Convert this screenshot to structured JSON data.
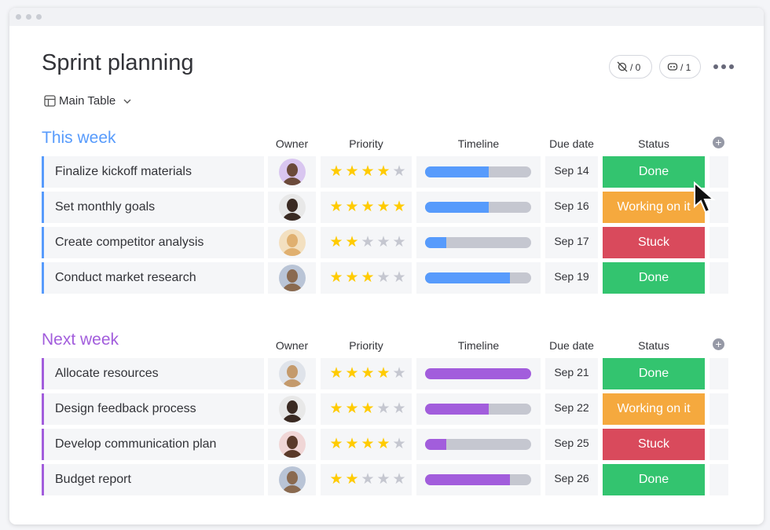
{
  "header": {
    "title": "Sprint planning",
    "view": "Main Table",
    "counters": [
      "/ 0",
      "/ 1"
    ]
  },
  "columns": [
    "Owner",
    "Priority",
    "Timeline",
    "Due date",
    "Status"
  ],
  "groups": [
    {
      "title": "This week",
      "color": "#579bfc",
      "rows": [
        {
          "task": "Finalize kickoff materials",
          "priority": 4,
          "timeline": 60,
          "due": "Sep 14",
          "status": {
            "label": "Done",
            "color": "#33c46f"
          }
        },
        {
          "task": "Set monthly goals",
          "priority": 5,
          "timeline": 60,
          "due": "Sep 16",
          "status": {
            "label": "Working on it",
            "color": "#f5a93e"
          }
        },
        {
          "task": "Create competitor analysis",
          "priority": 2,
          "timeline": 20,
          "due": "Sep 17",
          "status": {
            "label": "Stuck",
            "color": "#d94a5c"
          }
        },
        {
          "task": "Conduct market research",
          "priority": 3,
          "timeline": 80,
          "due": "Sep 19",
          "status": {
            "label": "Done",
            "color": "#33c46f"
          }
        }
      ]
    },
    {
      "title": "Next week",
      "color": "#a25ddc",
      "rows": [
        {
          "task": "Allocate resources",
          "priority": 4,
          "timeline": 100,
          "due": "Sep 21",
          "status": {
            "label": "Done",
            "color": "#33c46f"
          }
        },
        {
          "task": "Design feedback process",
          "priority": 3,
          "timeline": 60,
          "due": "Sep 22",
          "status": {
            "label": "Working on it",
            "color": "#f5a93e"
          }
        },
        {
          "task": "Develop communication plan",
          "priority": 4,
          "timeline": 20,
          "due": "Sep 25",
          "status": {
            "label": "Stuck",
            "color": "#d94a5c"
          }
        },
        {
          "task": "Budget report",
          "priority": 2,
          "timeline": 80,
          "due": "Sep 26",
          "status": {
            "label": "Done",
            "color": "#33c46f"
          }
        }
      ]
    }
  ]
}
